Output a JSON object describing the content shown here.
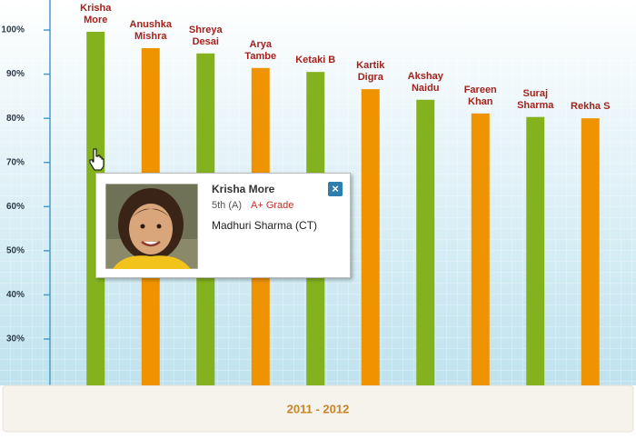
{
  "chart_data": {
    "type": "bar",
    "categories": [
      "Krisha More",
      "Anushka Mishra",
      "Shreya Desai",
      "Arya Tambe",
      "Ketaki B",
      "Kartik Digra",
      "Akshay Naidu",
      "Fareen Khan",
      "Suraj Sharma",
      "Rekha S"
    ],
    "values": [
      99.6,
      95.9,
      94.7,
      91.4,
      90.5,
      86.6,
      84.2,
      81.1,
      80.3,
      80.0
    ],
    "colors": [
      "#84b21f",
      "#f09300",
      "#84b21f",
      "#f09300",
      "#84b21f",
      "#f09300",
      "#84b21f",
      "#f09300",
      "#84b21f",
      "#f09300"
    ],
    "xlabel": "2011 - 2012",
    "ylim": [
      19.5,
      106.8
    ],
    "yticks": [
      {
        "value": 30,
        "label": "30%"
      },
      {
        "value": 40,
        "label": "40%"
      },
      {
        "value": 50,
        "label": "50%"
      },
      {
        "value": 60,
        "label": "60%"
      },
      {
        "value": 70,
        "label": "70%"
      },
      {
        "value": 80,
        "label": "80%"
      },
      {
        "value": 90,
        "label": "90%"
      },
      {
        "value": 100,
        "label": "100%"
      }
    ]
  },
  "tooltip": {
    "name": "Krisha More",
    "class": "5th (A)",
    "grade": "A+ Grade",
    "teacher": "Madhuri Sharma (CT)"
  }
}
